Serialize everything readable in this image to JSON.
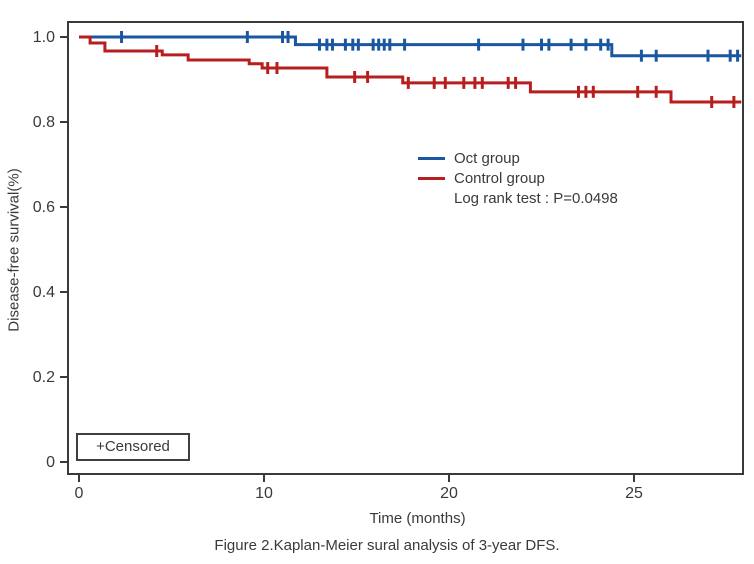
{
  "figure": {
    "caption": "Figure 2.Kaplan-Meier sural analysis of 3-year DFS.",
    "censored_box_label": "+Censored"
  },
  "chart_data": {
    "type": "line",
    "subtype": "kaplan-meier-step",
    "title": "",
    "xlabel": "Time (months)",
    "ylabel": "Disease-free survival(%)",
    "x_ticks": [
      "0",
      "10",
      "20",
      "25"
    ],
    "x_tick_values": [
      0,
      10,
      20,
      25
    ],
    "y_ticks": [
      "1.0",
      "0.8",
      "0.6",
      "0.4",
      "0.2",
      "0"
    ],
    "y_tick_values": [
      1.0,
      0.8,
      0.6,
      0.4,
      0.2,
      0
    ],
    "xlim": [
      0,
      28
    ],
    "ylim": [
      0,
      1.05
    ],
    "grid": "off",
    "legend_position": "center-right-inside",
    "frame_color": "#3a3a3a",
    "annotations": [
      "Log rank test : P=0.0498"
    ],
    "series": [
      {
        "name": "Oct group",
        "color": "#1a57a0",
        "steps": [
          [
            0,
            1.0
          ],
          [
            11.7,
            0.982
          ],
          [
            24.4,
            0.956
          ],
          [
            27.9,
            0.956
          ]
        ],
        "censors": [
          [
            2.3,
            1.0
          ],
          [
            9.1,
            1.0
          ],
          [
            11.0,
            1.0
          ],
          [
            11.3,
            1.0
          ],
          [
            13.0,
            0.982
          ],
          [
            13.4,
            0.982
          ],
          [
            13.7,
            0.982
          ],
          [
            14.4,
            0.982
          ],
          [
            14.8,
            0.982
          ],
          [
            15.1,
            0.982
          ],
          [
            15.9,
            0.982
          ],
          [
            16.2,
            0.982
          ],
          [
            16.5,
            0.982
          ],
          [
            16.8,
            0.982
          ],
          [
            17.6,
            0.982
          ],
          [
            20.8,
            0.982
          ],
          [
            22.0,
            0.982
          ],
          [
            22.5,
            0.982
          ],
          [
            22.7,
            0.982
          ],
          [
            23.3,
            0.982
          ],
          [
            23.7,
            0.982
          ],
          [
            24.1,
            0.982
          ],
          [
            24.3,
            0.982
          ],
          [
            25.2,
            0.956
          ],
          [
            25.6,
            0.956
          ],
          [
            27.0,
            0.956
          ],
          [
            27.6,
            0.956
          ],
          [
            27.8,
            0.956
          ]
        ]
      },
      {
        "name": "Control group",
        "color": "#b71f1e",
        "steps": [
          [
            0,
            1.0
          ],
          [
            0.6,
            0.986
          ],
          [
            1.4,
            0.967
          ],
          [
            4.5,
            0.958
          ],
          [
            5.9,
            0.946
          ],
          [
            9.2,
            0.937
          ],
          [
            9.9,
            0.927
          ],
          [
            13.4,
            0.906
          ],
          [
            17.5,
            0.892
          ],
          [
            22.2,
            0.871
          ],
          [
            26.0,
            0.847
          ],
          [
            27.9,
            0.847
          ]
        ],
        "censors": [
          [
            4.2,
            0.967
          ],
          [
            10.2,
            0.927
          ],
          [
            10.7,
            0.927
          ],
          [
            14.9,
            0.906
          ],
          [
            15.6,
            0.906
          ],
          [
            17.8,
            0.892
          ],
          [
            19.2,
            0.892
          ],
          [
            19.8,
            0.892
          ],
          [
            20.4,
            0.892
          ],
          [
            20.7,
            0.892
          ],
          [
            20.9,
            0.892
          ],
          [
            21.6,
            0.892
          ],
          [
            21.8,
            0.892
          ],
          [
            23.5,
            0.871
          ],
          [
            23.7,
            0.871
          ],
          [
            23.9,
            0.871
          ],
          [
            25.1,
            0.871
          ],
          [
            25.6,
            0.871
          ],
          [
            27.1,
            0.847
          ],
          [
            27.7,
            0.847
          ]
        ]
      }
    ]
  }
}
